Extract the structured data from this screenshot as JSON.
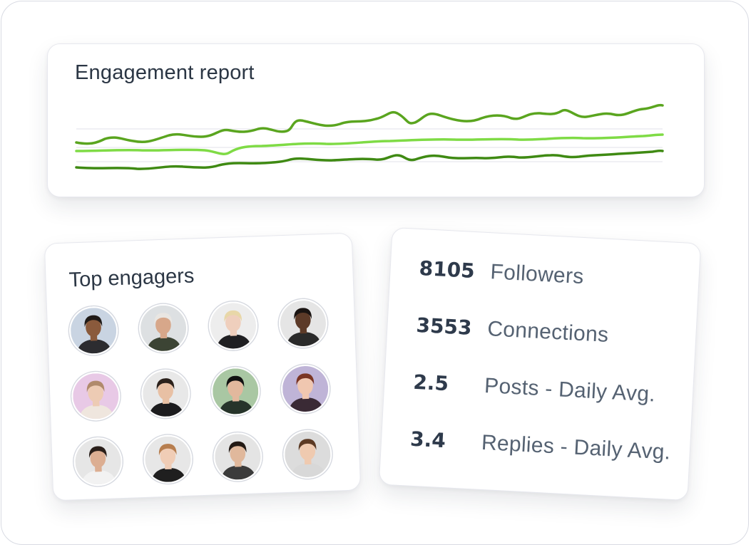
{
  "engagement_report": {
    "title": "Engagement report",
    "colors": {
      "series_a": "#5aa51f",
      "series_b": "#7fdb45",
      "series_c": "#3f8a13",
      "grid": "#ececf0"
    }
  },
  "top_engagers": {
    "title": "Top engagers",
    "avatars": [
      {
        "name": "avatar-1",
        "bg": "#c9d4e2",
        "skin": "#8a5a3c",
        "hair": "#1f1a17",
        "shirt": "#2c2c30"
      },
      {
        "name": "avatar-2",
        "bg": "#dde0e2",
        "skin": "#d7a78a",
        "hair": "#e9e6e2",
        "shirt": "#3c4434"
      },
      {
        "name": "avatar-3",
        "bg": "#ededed",
        "skin": "#efcfbd",
        "hair": "#e8d7a8",
        "shirt": "#1f1f22"
      },
      {
        "name": "avatar-4",
        "bg": "#e5e5e5",
        "skin": "#5c3a28",
        "hair": "#1a1412",
        "shirt": "#2a2a2a"
      },
      {
        "name": "avatar-5",
        "bg": "#e8c9e6",
        "skin": "#edcbb4",
        "hair": "#b08a6c",
        "shirt": "#efe6de"
      },
      {
        "name": "avatar-6",
        "bg": "#e8e8e8",
        "skin": "#e8c0a4",
        "hair": "#2b211b",
        "shirt": "#1c1c1e"
      },
      {
        "name": "avatar-7",
        "bg": "#a9c7a3",
        "skin": "#e2b89d",
        "hair": "#111111",
        "shirt": "#26342a"
      },
      {
        "name": "avatar-8",
        "bg": "#bfb4d7",
        "skin": "#f0c7b0",
        "hair": "#7a3524",
        "shirt": "#3a2a35"
      },
      {
        "name": "avatar-9",
        "bg": "#e6e6e6",
        "skin": "#dcae92",
        "hair": "#2a1f1a",
        "shirt": "#f2f2f2"
      },
      {
        "name": "avatar-10",
        "bg": "#e7e7e7",
        "skin": "#f0cdb6",
        "hair": "#b77e4f",
        "shirt": "#1f1f1f"
      },
      {
        "name": "avatar-11",
        "bg": "#e4e4e4",
        "skin": "#e0b89c",
        "hair": "#231a15",
        "shirt": "#3b3b3b"
      },
      {
        "name": "avatar-12",
        "bg": "#dcdcdc",
        "skin": "#efcab0",
        "hair": "#5c3a24",
        "shirt": "#d8d8d8"
      }
    ]
  },
  "stats": {
    "items": [
      {
        "value": "8105",
        "label": "Followers"
      },
      {
        "value": "3553",
        "label": "Connections"
      },
      {
        "value": "2.5",
        "label": "Posts - Daily Avg."
      },
      {
        "value": "3.4",
        "label": "Replies - Daily Avg."
      }
    ]
  }
}
